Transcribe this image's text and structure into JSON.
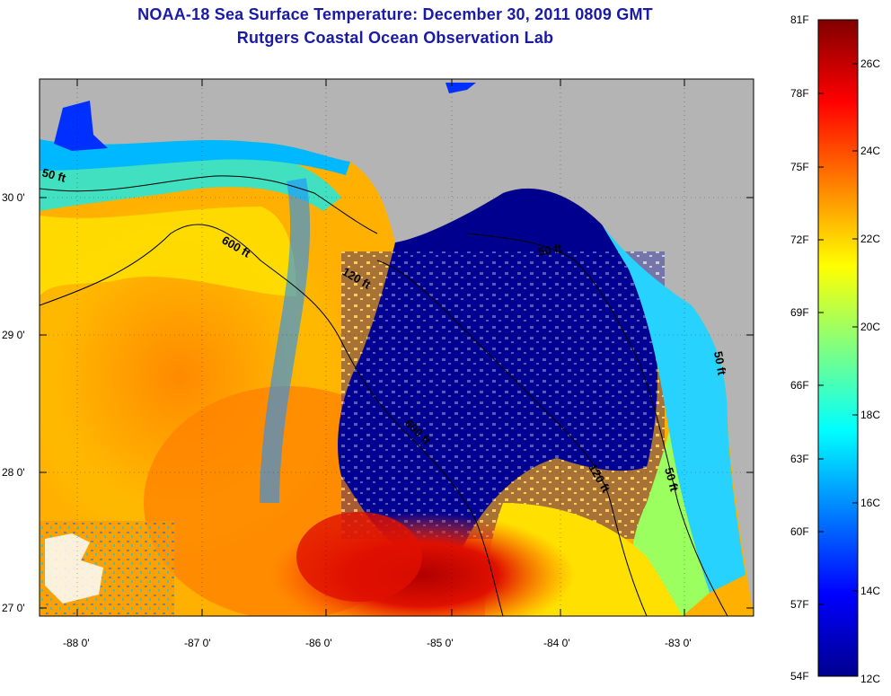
{
  "title": {
    "line1": "NOAA-18 Sea Surface Temperature:  December 30, 2011 0809 GMT",
    "line2": "Rutgers Coastal Ocean Observation Lab"
  },
  "map": {
    "lat_labels": [
      "30 0'",
      "29 0'",
      "28 0'",
      "27 0'"
    ],
    "lon_labels": [
      "-88 0'",
      "-87 0'",
      "-86 0'",
      "-85 0'",
      "-84 0'",
      "-83 0'"
    ],
    "contour_labels": [
      "50 ft",
      "600 ft",
      "120 ft",
      "50 ft",
      "600 ft",
      "120 ft",
      "50 ft",
      "50 ft"
    ],
    "colors": {
      "land": "#b4b4b4",
      "cloud": "#ffffff",
      "cold": "#00008f",
      "warm": "#d00000"
    }
  },
  "colorbar": {
    "fahrenheit_labels": [
      "81F",
      "78F",
      "75F",
      "72F",
      "69F",
      "66F",
      "63F",
      "60F",
      "57F",
      "54F"
    ],
    "celsius_labels": [
      "26C",
      "24C",
      "22C",
      "20C",
      "18C",
      "16C",
      "14C",
      "12C"
    ]
  }
}
